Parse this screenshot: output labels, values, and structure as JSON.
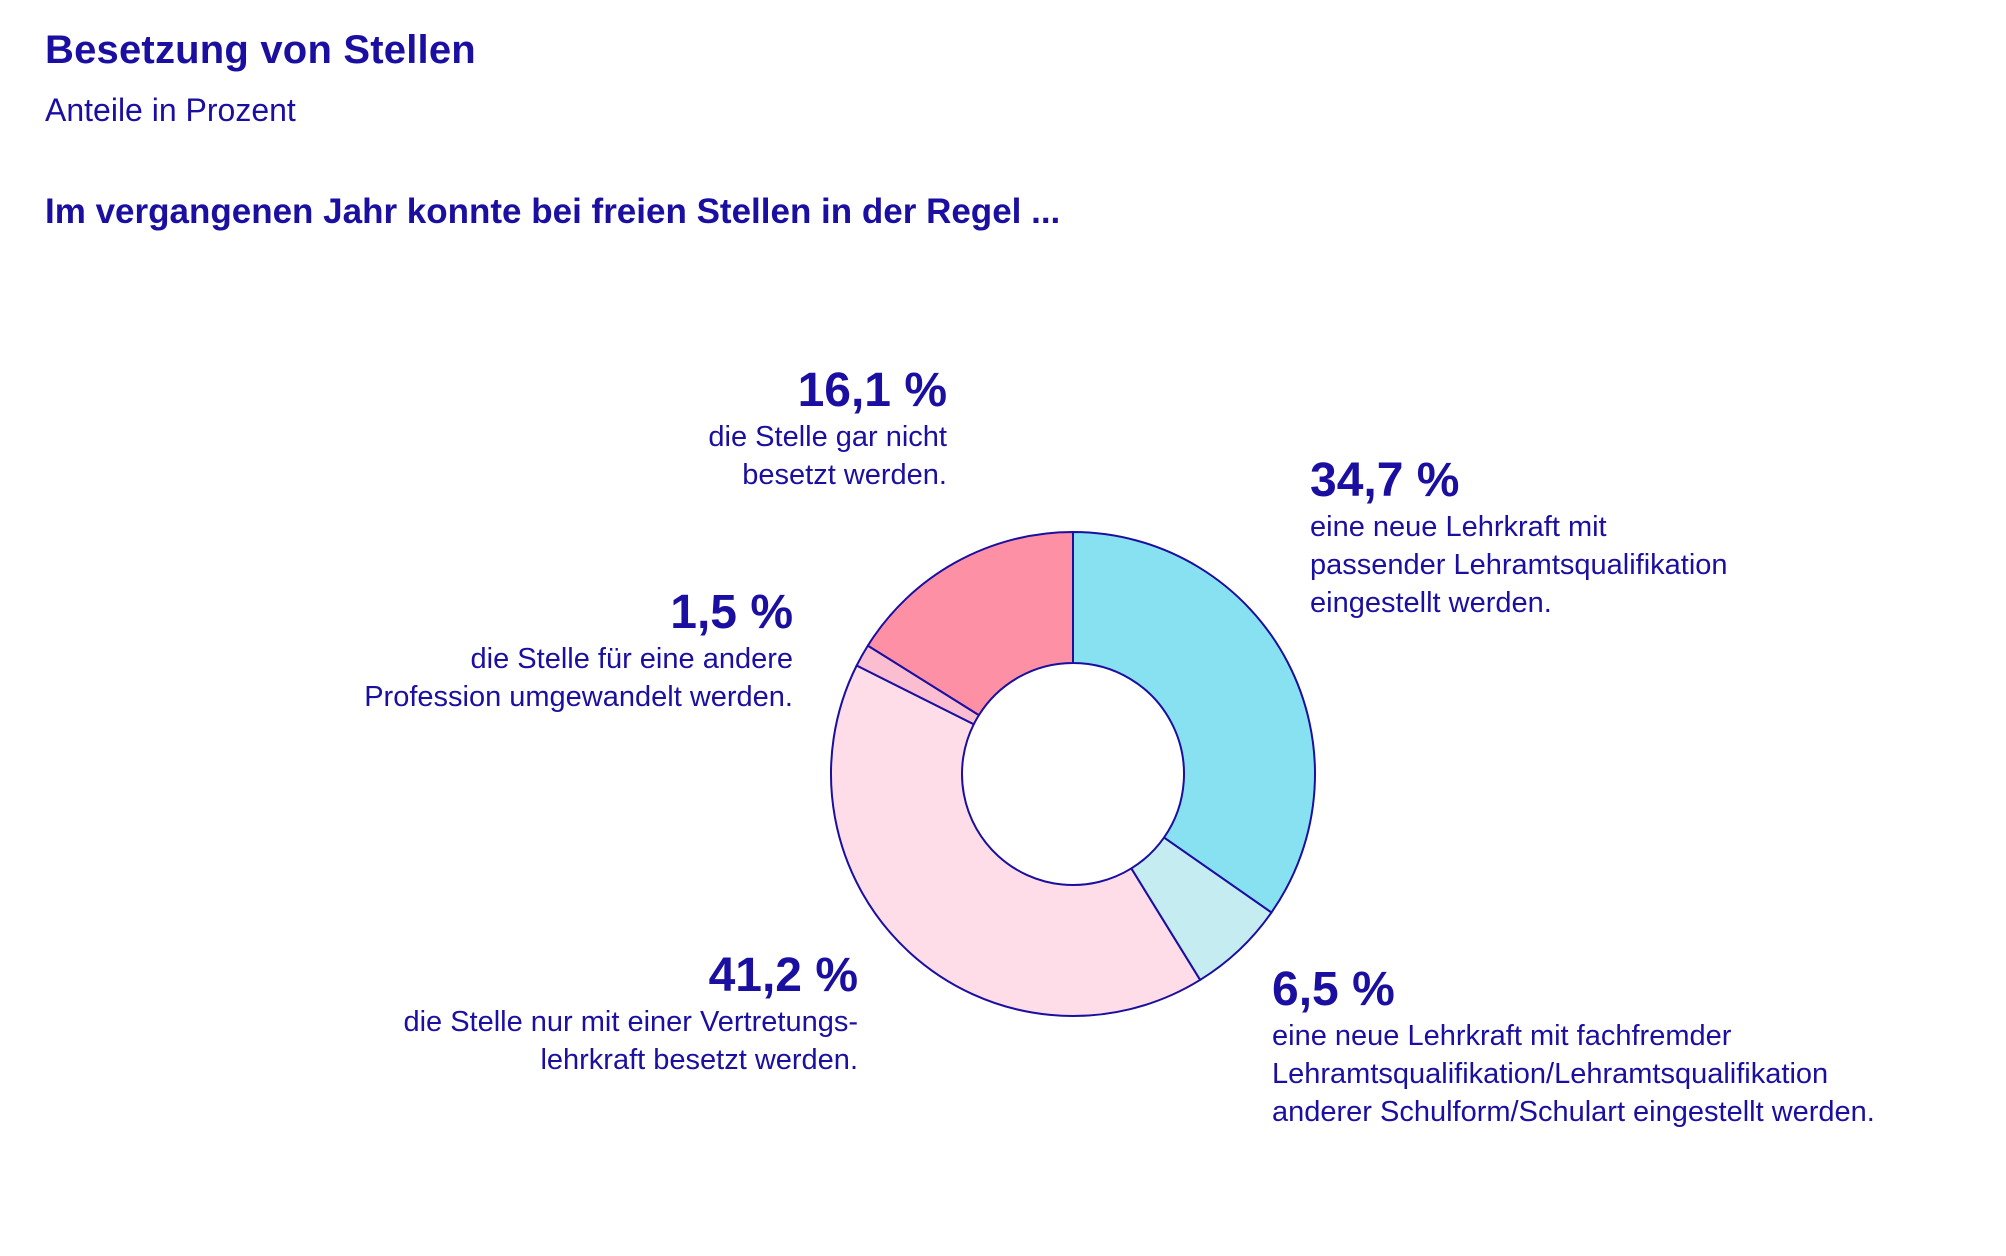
{
  "header": {
    "title": "Besetzung von Stellen",
    "subtitle": "Anteile in Prozent",
    "question": "Im vergangenen Jahr konnte bei freien Stellen in der Regel ..."
  },
  "colors": {
    "text": "#1a0fa0",
    "stroke": "#1a0fa0"
  },
  "labels": {
    "passend": {
      "pct": "34,7 %",
      "line1": "eine neue Lehrkraft mit",
      "line2": "passender Lehramtsqualifikation",
      "line3": "eingestellt werden."
    },
    "fachfremd": {
      "pct": "6,5 %",
      "line1": "eine neue Lehrkraft mit fachfremder",
      "line2": "Lehramtsqualifikation/Lehramtsqualifikation",
      "line3": "anderer Schulform/Schulart eingestellt werden."
    },
    "vertretung": {
      "pct": "41,2 %",
      "line1": "die Stelle nur mit einer Vertretungs-",
      "line2": "lehrkraft besetzt werden."
    },
    "profession": {
      "pct": "1,5 %",
      "line1": "die Stelle für eine andere",
      "line2": "Profession umgewandelt werden."
    },
    "nicht": {
      "pct": "16,1 %",
      "line1": "die Stelle gar nicht",
      "line2": "besetzt werden."
    }
  },
  "chart_data": {
    "type": "pie",
    "variant": "donut",
    "title": "Besetzung von Stellen",
    "subtitle": "Anteile in Prozent",
    "unit": "%",
    "slices": [
      {
        "label": "eine neue Lehrkraft mit passender Lehramtsqualifikation eingestellt werden.",
        "value": 34.7,
        "color": "#88e1f0"
      },
      {
        "label": "eine neue Lehrkraft mit fachfremder Lehramtsqualifikation/Lehramtsqualifikation anderer Schulform/Schulart eingestellt werden.",
        "value": 6.5,
        "color": "#c5ecf1"
      },
      {
        "label": "die Stelle nur mit einer Vertretungslehrkraft besetzt werden.",
        "value": 41.2,
        "color": "#fedde8"
      },
      {
        "label": "die Stelle für eine andere Profession umgewandelt werden.",
        "value": 1.5,
        "color": "#fbbdd0"
      },
      {
        "label": "die Stelle gar nicht besetzt werden.",
        "value": 16.1,
        "color": "#fe90a6"
      }
    ]
  }
}
